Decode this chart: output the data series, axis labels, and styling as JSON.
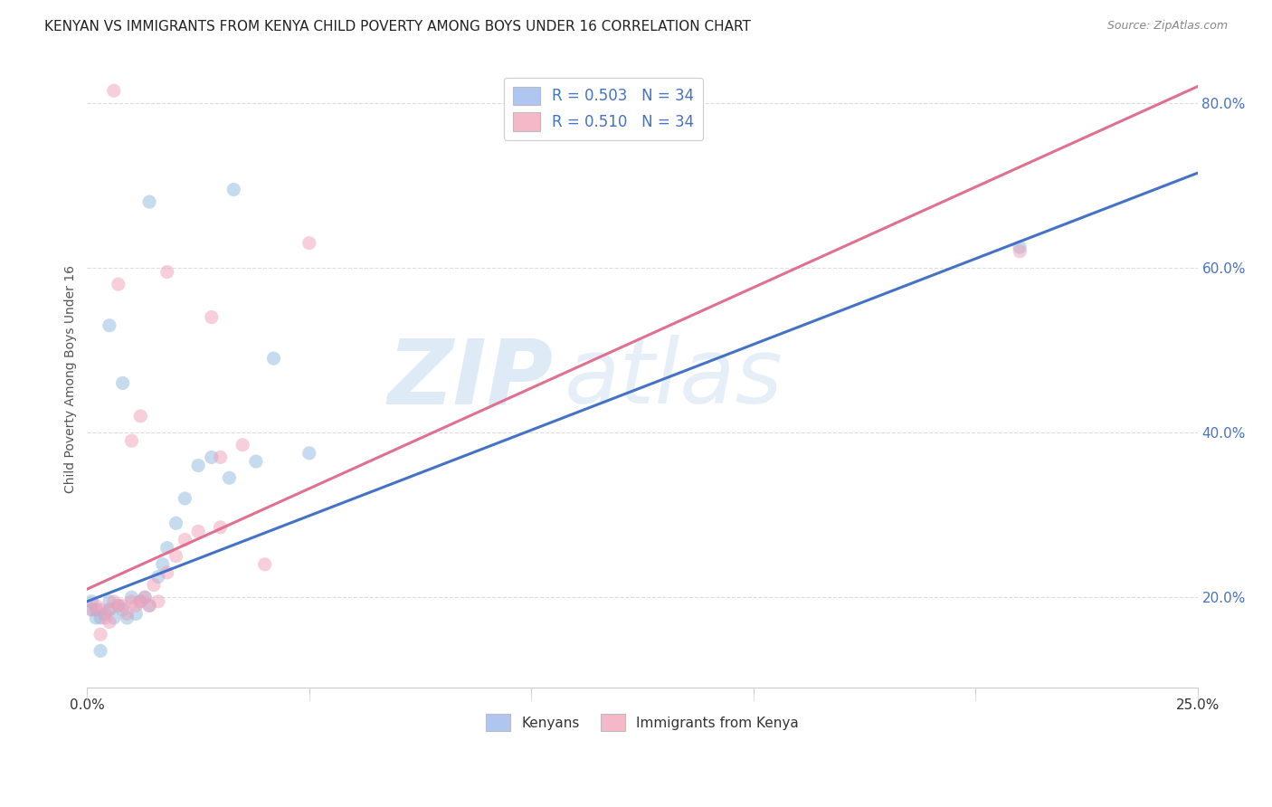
{
  "title": "KENYAN VS IMMIGRANTS FROM KENYA CHILD POVERTY AMONG BOYS UNDER 16 CORRELATION CHART",
  "source": "Source: ZipAtlas.com",
  "ylabel": "Child Poverty Among Boys Under 16",
  "x_min": 0.0,
  "x_max": 0.25,
  "y_min": 0.09,
  "y_max": 0.84,
  "x_ticks": [
    0.0,
    0.05,
    0.1,
    0.15,
    0.2,
    0.25
  ],
  "x_tick_labels": [
    "0.0%",
    "",
    "",
    "",
    "",
    "25.0%"
  ],
  "y_ticks": [
    0.2,
    0.4,
    0.6,
    0.8
  ],
  "y_tick_labels": [
    "20.0%",
    "40.0%",
    "60.0%",
    "80.0%"
  ],
  "legend_entries": [
    {
      "label": "R = 0.503   N = 34",
      "color": "#aec6f0"
    },
    {
      "label": "R = 0.510   N = 34",
      "color": "#f5b8c8"
    }
  ],
  "legend_bottom_entries": [
    {
      "label": "Kenyans",
      "color": "#aec6f0"
    },
    {
      "label": "Immigrants from Kenya",
      "color": "#f5b8c8"
    }
  ],
  "blue_scatter_x": [
    0.001,
    0.001,
    0.002,
    0.002,
    0.003,
    0.004,
    0.005,
    0.005,
    0.006,
    0.007,
    0.008,
    0.009,
    0.01,
    0.011,
    0.012,
    0.013,
    0.014,
    0.016,
    0.017,
    0.018,
    0.02,
    0.022,
    0.025,
    0.028,
    0.032,
    0.038,
    0.042,
    0.05,
    0.014,
    0.033,
    0.21,
    0.005,
    0.008,
    0.003
  ],
  "blue_scatter_y": [
    0.195,
    0.185,
    0.185,
    0.175,
    0.175,
    0.18,
    0.195,
    0.185,
    0.175,
    0.19,
    0.185,
    0.175,
    0.2,
    0.18,
    0.195,
    0.2,
    0.19,
    0.225,
    0.24,
    0.26,
    0.29,
    0.32,
    0.36,
    0.37,
    0.345,
    0.365,
    0.49,
    0.375,
    0.68,
    0.695,
    0.625,
    0.53,
    0.46,
    0.135
  ],
  "pink_scatter_x": [
    0.001,
    0.002,
    0.003,
    0.004,
    0.005,
    0.006,
    0.007,
    0.008,
    0.009,
    0.01,
    0.011,
    0.012,
    0.013,
    0.014,
    0.015,
    0.016,
    0.018,
    0.02,
    0.022,
    0.025,
    0.03,
    0.04,
    0.007,
    0.018,
    0.028,
    0.03,
    0.035,
    0.01,
    0.012,
    0.05,
    0.21,
    0.003,
    0.005,
    0.006
  ],
  "pink_scatter_y": [
    0.185,
    0.19,
    0.185,
    0.175,
    0.185,
    0.195,
    0.19,
    0.19,
    0.18,
    0.195,
    0.19,
    0.195,
    0.2,
    0.19,
    0.215,
    0.195,
    0.23,
    0.25,
    0.27,
    0.28,
    0.285,
    0.24,
    0.58,
    0.595,
    0.54,
    0.37,
    0.385,
    0.39,
    0.42,
    0.63,
    0.62,
    0.155,
    0.17,
    0.815
  ],
  "blue_line": {
    "x0": 0.0,
    "y0": 0.195,
    "x1": 0.25,
    "y1": 0.715
  },
  "pink_line": {
    "x0": 0.0,
    "y0": 0.21,
    "x1": 0.25,
    "y1": 0.82
  },
  "watermark_zip": "ZIP",
  "watermark_atlas": "atlas",
  "blue_color": "#90b8e0",
  "pink_color": "#f0a0b8",
  "blue_line_color": "#4472c4",
  "pink_line_color": "#e07090",
  "background_color": "#ffffff",
  "grid_color": "#dddddd",
  "title_fontsize": 11,
  "axis_label_fontsize": 10,
  "tick_label_fontsize": 11,
  "scatter_size": 120,
  "scatter_alpha": 0.5,
  "line_width": 2.2
}
